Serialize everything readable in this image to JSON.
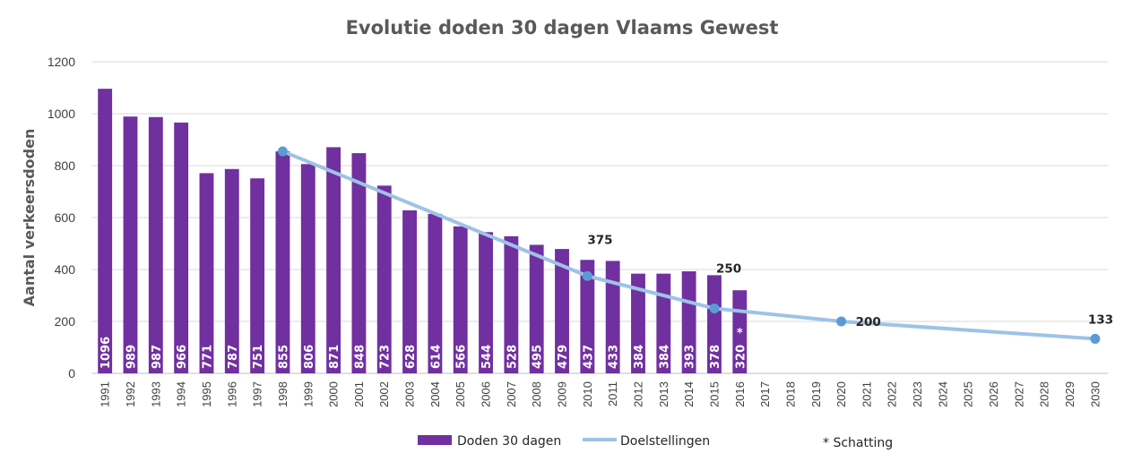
{
  "chart_data": {
    "type": "bar",
    "title": "Evolutie doden 30 dagen Vlaams Gewest",
    "ylabel": "Aantal verkeersdoden",
    "xlabel": "",
    "ylim": [
      0,
      1200
    ],
    "yticks": [
      0,
      200,
      400,
      600,
      800,
      1000,
      1200
    ],
    "grid": true,
    "legend_position": "bottom",
    "categories": [
      "1991",
      "1992",
      "1993",
      "1994",
      "1995",
      "1996",
      "1997",
      "1998",
      "1999",
      "2000",
      "2001",
      "2002",
      "2003",
      "2004",
      "2005",
      "2006",
      "2007",
      "2008",
      "2009",
      "2010",
      "2011",
      "2012",
      "2013",
      "2014",
      "2015",
      "2016",
      "2017",
      "2018",
      "2019",
      "2020",
      "2021",
      "2022",
      "2023",
      "2024",
      "2025",
      "2026",
      "2027",
      "2028",
      "2029",
      "2030"
    ],
    "series": [
      {
        "name": "Doden 30 dagen",
        "type": "bar",
        "color": "#7030a0",
        "x": [
          "1991",
          "1992",
          "1993",
          "1994",
          "1995",
          "1996",
          "1997",
          "1998",
          "1999",
          "2000",
          "2001",
          "2002",
          "2003",
          "2004",
          "2005",
          "2006",
          "2007",
          "2008",
          "2009",
          "2010",
          "2011",
          "2012",
          "2013",
          "2014",
          "2015",
          "2016"
        ],
        "values": [
          1096,
          989,
          987,
          966,
          771,
          787,
          751,
          855,
          806,
          871,
          848,
          723,
          628,
          614,
          566,
          544,
          528,
          495,
          479,
          437,
          433,
          384,
          384,
          393,
          378,
          320
        ],
        "labels": [
          "1096",
          "989",
          "987",
          "966",
          "771",
          "787",
          "751",
          "855",
          "806",
          "871",
          "848",
          "723",
          "628",
          "614",
          "566",
          "544",
          "528",
          "495",
          "479",
          "437",
          "433",
          "384",
          "384",
          "393",
          "378",
          "320"
        ]
      },
      {
        "name": "Doelstellingen",
        "type": "line",
        "color": "#9dc3e6",
        "marker_color": "#5b9bd5",
        "points": [
          {
            "x": "1998",
            "y": 855,
            "label": ""
          },
          {
            "x": "2010",
            "y": 375,
            "label": "375"
          },
          {
            "x": "2015",
            "y": 250,
            "label": "250"
          },
          {
            "x": "2020",
            "y": 200,
            "label": "200"
          },
          {
            "x": "2030",
            "y": 133,
            "label": "133"
          }
        ]
      }
    ],
    "annotations": [
      {
        "text": "*",
        "x": "2016",
        "note": "Schatting"
      }
    ],
    "footnote": "* Schatting"
  }
}
